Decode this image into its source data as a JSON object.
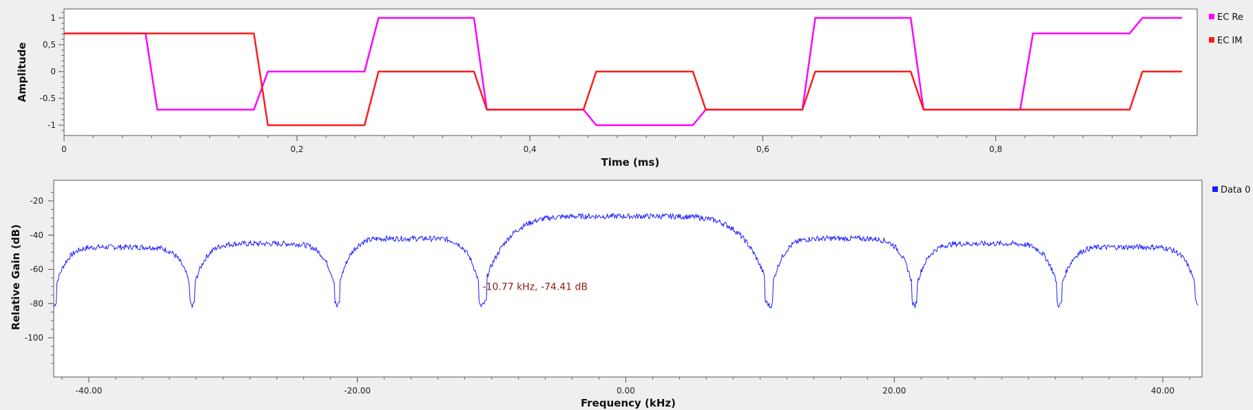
{
  "chart_data": [
    {
      "type": "line",
      "xlabel": "Time (ms)",
      "ylabel": "Amplitude",
      "xlim": [
        0,
        0.97
      ],
      "ylim": [
        -1.2,
        1.2
      ],
      "xticks": [
        "0",
        "0,2",
        "0,4",
        "0,6",
        "0,8"
      ],
      "yticks": [
        "1",
        "0,5",
        "0",
        "-0.5",
        "-1"
      ],
      "legend_position": "right",
      "series": [
        {
          "name": "EC Re",
          "color": "#ff00ff",
          "x": [
            0,
            0.07,
            0.08,
            0.163,
            0.175,
            0.258,
            0.27,
            0.352,
            0.363,
            0.446,
            0.457,
            0.54,
            0.551,
            0.634,
            0.645,
            0.727,
            0.738,
            0.821,
            0.832,
            0.915,
            0.926,
            0.96
          ],
          "y": [
            0.71,
            0.71,
            -0.71,
            -0.71,
            0,
            0,
            1,
            1,
            -0.71,
            -0.71,
            -1,
            -1,
            -0.71,
            -0.71,
            1,
            1,
            -0.71,
            -0.71,
            0.71,
            0.71,
            1,
            1
          ]
        },
        {
          "name": "EC IM",
          "color": "#ff1a1a",
          "x": [
            0,
            0.163,
            0.175,
            0.258,
            0.27,
            0.352,
            0.363,
            0.446,
            0.457,
            0.54,
            0.551,
            0.634,
            0.645,
            0.727,
            0.738,
            0.915,
            0.926,
            0.96
          ],
          "y": [
            0.71,
            0.71,
            -1,
            -1,
            0,
            0,
            -0.71,
            -0.71,
            0,
            0,
            -0.71,
            -0.71,
            0,
            0,
            -0.71,
            -0.71,
            0,
            0
          ]
        }
      ]
    },
    {
      "type": "line",
      "xlabel": "Frequency (kHz)",
      "ylabel": "Relative Gain (dB)",
      "xlim": [
        -43,
        43
      ],
      "ylim": [
        -120,
        -10
      ],
      "xticks": [
        "-40.00",
        "-20.00",
        "0.00",
        "20.00",
        "40.00"
      ],
      "yticks": [
        "-20",
        "-40",
        "-60",
        "-80",
        "-100"
      ],
      "legend_position": "right",
      "series": [
        {
          "name": "Data 0",
          "color": "#1a1aff",
          "lobes": [
            {
              "from": -42.6,
              "to": -32.3,
              "peak": -47
            },
            {
              "from": -32.3,
              "to": -21.5,
              "peak": -45
            },
            {
              "from": -21.5,
              "to": -10.77,
              "peak": -42
            },
            {
              "from": -10.77,
              "to": 10.77,
              "peak": -29
            },
            {
              "from": 10.77,
              "to": 21.5,
              "peak": -42
            },
            {
              "from": 21.5,
              "to": 32.3,
              "peak": -45
            },
            {
              "from": 32.3,
              "to": 42.6,
              "peak": -47
            }
          ],
          "null_level": -74
        }
      ],
      "annotation": {
        "x": -10.77,
        "y": -74.41,
        "text": "-10.77 kHz, -74.41 dB"
      }
    }
  ]
}
